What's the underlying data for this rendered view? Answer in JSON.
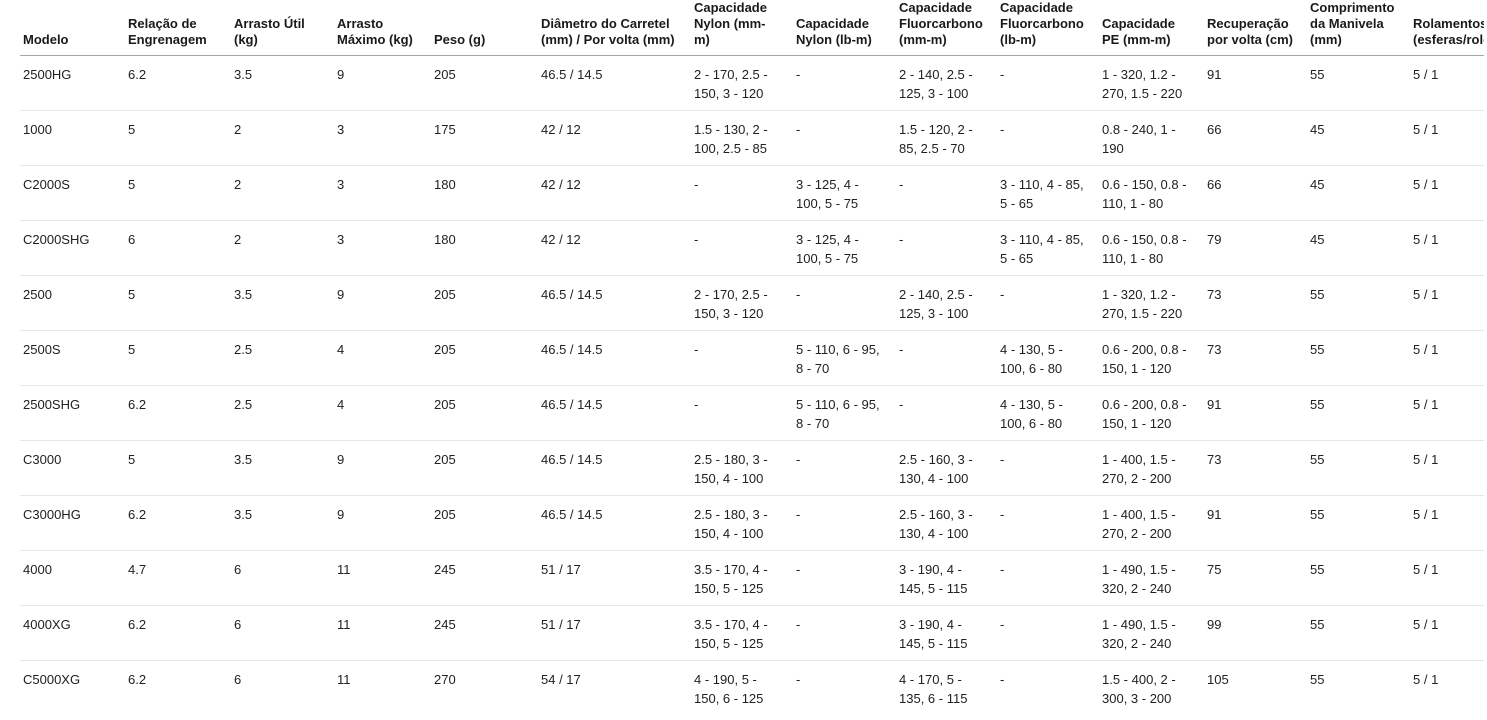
{
  "colors": {
    "background": "#ffffff",
    "text": "#212121",
    "header_text": "#1a1a1a",
    "header_border": "#a6a6a6",
    "row_border": "#e7e7e7"
  },
  "table": {
    "columns": [
      {
        "key": "modelo",
        "label": "Modelo"
      },
      {
        "key": "relacao_engrenagem",
        "label": "Relação de Engrenagem"
      },
      {
        "key": "arrasto_util",
        "label": "Arrasto Útil (kg)"
      },
      {
        "key": "arrasto_maximo",
        "label": "Arrasto Máximo (kg)"
      },
      {
        "key": "peso",
        "label": "Peso (g)"
      },
      {
        "key": "diametro_carretel",
        "label": "Diâmetro do Carretel (mm) / Por volta (mm)"
      },
      {
        "key": "cap_nylon_mm",
        "label": "Capacidade Nylon (mm-m)"
      },
      {
        "key": "cap_nylon_lb",
        "label": "Capacidade Nylon (lb-m)"
      },
      {
        "key": "cap_fluor_mm",
        "label": "Capacidade Fluorcarbono (mm-m)"
      },
      {
        "key": "cap_fluor_lb",
        "label": "Capacidade Fluorcarbono (lb-m)"
      },
      {
        "key": "cap_pe",
        "label": "Capacidade PE (mm-m)"
      },
      {
        "key": "recuperacao",
        "label": "Recuperação por volta (cm)"
      },
      {
        "key": "comprimento_manivela",
        "label": "Comprimento da Manivela (mm)"
      },
      {
        "key": "rolamentos",
        "label": "Rolamentos (esferas/rolos)"
      }
    ],
    "rows": [
      {
        "modelo": "2500HG",
        "relacao_engrenagem": "6.2",
        "arrasto_util": "3.5",
        "arrasto_maximo": "9",
        "peso": "205",
        "diametro_carretel": "46.5 / 14.5",
        "cap_nylon_mm": "2 - 170, 2.5 - 150, 3 - 120",
        "cap_nylon_lb": "-",
        "cap_fluor_mm": "2 - 140, 2.5 - 125, 3 - 100",
        "cap_fluor_lb": "-",
        "cap_pe": "1 - 320, 1.2 - 270, 1.5 - 220",
        "recuperacao": "91",
        "comprimento_manivela": "55",
        "rolamentos": "5 / 1"
      },
      {
        "modelo": "1000",
        "relacao_engrenagem": "5",
        "arrasto_util": "2",
        "arrasto_maximo": "3",
        "peso": "175",
        "diametro_carretel": "42 / 12",
        "cap_nylon_mm": "1.5 - 130, 2 - 100, 2.5 - 85",
        "cap_nylon_lb": "-",
        "cap_fluor_mm": "1.5 - 120, 2 - 85, 2.5 - 70",
        "cap_fluor_lb": "-",
        "cap_pe": "0.8 - 240, 1 - 190",
        "recuperacao": "66",
        "comprimento_manivela": "45",
        "rolamentos": "5 / 1"
      },
      {
        "modelo": "C2000S",
        "relacao_engrenagem": "5",
        "arrasto_util": "2",
        "arrasto_maximo": "3",
        "peso": "180",
        "diametro_carretel": "42 / 12",
        "cap_nylon_mm": "-",
        "cap_nylon_lb": "3 - 125, 4 - 100, 5 - 75",
        "cap_fluor_mm": "-",
        "cap_fluor_lb": "3 - 110, 4 - 85, 5 - 65",
        "cap_pe": "0.6 - 150, 0.8 - 110, 1 - 80",
        "recuperacao": "66",
        "comprimento_manivela": "45",
        "rolamentos": "5 / 1"
      },
      {
        "modelo": "C2000SHG",
        "relacao_engrenagem": "6",
        "arrasto_util": "2",
        "arrasto_maximo": "3",
        "peso": "180",
        "diametro_carretel": "42 / 12",
        "cap_nylon_mm": "-",
        "cap_nylon_lb": "3 - 125, 4 - 100, 5 - 75",
        "cap_fluor_mm": "-",
        "cap_fluor_lb": "3 - 110, 4 - 85, 5 - 65",
        "cap_pe": "0.6 - 150, 0.8 - 110, 1 - 80",
        "recuperacao": "79",
        "comprimento_manivela": "45",
        "rolamentos": "5 / 1"
      },
      {
        "modelo": "2500",
        "relacao_engrenagem": "5",
        "arrasto_util": "3.5",
        "arrasto_maximo": "9",
        "peso": "205",
        "diametro_carretel": "46.5 / 14.5",
        "cap_nylon_mm": "2 - 170, 2.5 - 150, 3 - 120",
        "cap_nylon_lb": "-",
        "cap_fluor_mm": "2 - 140, 2.5 - 125, 3 - 100",
        "cap_fluor_lb": "-",
        "cap_pe": "1 - 320, 1.2 - 270, 1.5 - 220",
        "recuperacao": "73",
        "comprimento_manivela": "55",
        "rolamentos": "5 / 1"
      },
      {
        "modelo": "2500S",
        "relacao_engrenagem": "5",
        "arrasto_util": "2.5",
        "arrasto_maximo": "4",
        "peso": "205",
        "diametro_carretel": "46.5 / 14.5",
        "cap_nylon_mm": "-",
        "cap_nylon_lb": "5 - 110, 6 - 95, 8 - 70",
        "cap_fluor_mm": "-",
        "cap_fluor_lb": "4 - 130, 5 - 100, 6 - 80",
        "cap_pe": "0.6 - 200, 0.8 - 150, 1 - 120",
        "recuperacao": "73",
        "comprimento_manivela": "55",
        "rolamentos": "5 / 1"
      },
      {
        "modelo": "2500SHG",
        "relacao_engrenagem": "6.2",
        "arrasto_util": "2.5",
        "arrasto_maximo": "4",
        "peso": "205",
        "diametro_carretel": "46.5 / 14.5",
        "cap_nylon_mm": "-",
        "cap_nylon_lb": "5 - 110, 6 - 95, 8 - 70",
        "cap_fluor_mm": "-",
        "cap_fluor_lb": "4 - 130, 5 - 100, 6 - 80",
        "cap_pe": "0.6 - 200, 0.8 - 150, 1 - 120",
        "recuperacao": "91",
        "comprimento_manivela": "55",
        "rolamentos": "5 / 1"
      },
      {
        "modelo": "C3000",
        "relacao_engrenagem": "5",
        "arrasto_util": "3.5",
        "arrasto_maximo": "9",
        "peso": "205",
        "diametro_carretel": "46.5 / 14.5",
        "cap_nylon_mm": "2.5 - 180, 3 - 150, 4 - 100",
        "cap_nylon_lb": "-",
        "cap_fluor_mm": "2.5 - 160, 3 - 130, 4 - 100",
        "cap_fluor_lb": "-",
        "cap_pe": "1 - 400, 1.5 - 270, 2 - 200",
        "recuperacao": "73",
        "comprimento_manivela": "55",
        "rolamentos": "5 / 1"
      },
      {
        "modelo": "C3000HG",
        "relacao_engrenagem": "6.2",
        "arrasto_util": "3.5",
        "arrasto_maximo": "9",
        "peso": "205",
        "diametro_carretel": "46.5 / 14.5",
        "cap_nylon_mm": "2.5 - 180, 3 - 150, 4 - 100",
        "cap_nylon_lb": "-",
        "cap_fluor_mm": "2.5 - 160, 3 - 130, 4 - 100",
        "cap_fluor_lb": "-",
        "cap_pe": "1 - 400, 1.5 - 270, 2 - 200",
        "recuperacao": "91",
        "comprimento_manivela": "55",
        "rolamentos": "5 / 1"
      },
      {
        "modelo": "4000",
        "relacao_engrenagem": "4.7",
        "arrasto_util": "6",
        "arrasto_maximo": "11",
        "peso": "245",
        "diametro_carretel": "51 / 17",
        "cap_nylon_mm": "3.5 - 170, 4 - 150, 5 - 125",
        "cap_nylon_lb": "-",
        "cap_fluor_mm": "3 - 190, 4 - 145, 5 - 115",
        "cap_fluor_lb": "-",
        "cap_pe": "1 - 490, 1.5 - 320, 2 - 240",
        "recuperacao": "75",
        "comprimento_manivela": "55",
        "rolamentos": "5 / 1"
      },
      {
        "modelo": "4000XG",
        "relacao_engrenagem": "6.2",
        "arrasto_util": "6",
        "arrasto_maximo": "11",
        "peso": "245",
        "diametro_carretel": "51 / 17",
        "cap_nylon_mm": "3.5 - 170, 4 - 150, 5 - 125",
        "cap_nylon_lb": "-",
        "cap_fluor_mm": "3 - 190, 4 - 145, 5 - 115",
        "cap_fluor_lb": "-",
        "cap_pe": "1 - 490, 1.5 - 320, 2 - 240",
        "recuperacao": "99",
        "comprimento_manivela": "55",
        "rolamentos": "5 / 1"
      },
      {
        "modelo": "C5000XG",
        "relacao_engrenagem": "6.2",
        "arrasto_util": "6",
        "arrasto_maximo": "11",
        "peso": "270",
        "diametro_carretel": "54 / 17",
        "cap_nylon_mm": "4 - 190, 5 - 150, 6 - 125",
        "cap_nylon_lb": "-",
        "cap_fluor_mm": "4 - 170, 5 - 135, 6 - 115",
        "cap_fluor_lb": "-",
        "cap_pe": "1.5 - 400, 2 - 300, 3 - 200",
        "recuperacao": "105",
        "comprimento_manivela": "55",
        "rolamentos": "5 / 1"
      }
    ]
  }
}
